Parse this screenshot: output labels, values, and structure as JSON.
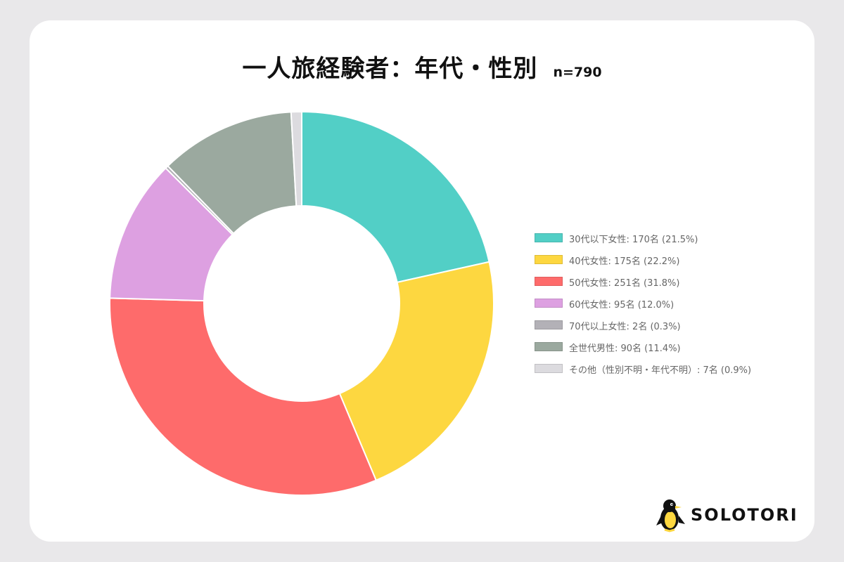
{
  "title": "一人旅経験者：年代・性別",
  "sample_size": "n=790",
  "brand": {
    "name": "SOLOTORI",
    "logo_icon": "penguin-mascot-icon"
  },
  "legend": [
    {
      "label": "30代以下女性: 170名 (21.5%)",
      "color": "#52cfc6"
    },
    {
      "label": "40代女性: 175名 (22.2%)",
      "color": "#fdd740"
    },
    {
      "label": "50代女性: 251名 (31.8%)",
      "color": "#fe6b6b"
    },
    {
      "label": "60代女性: 95名 (12.0%)",
      "color": "#dda0e1"
    },
    {
      "label": "70代以上女性: 2名 (0.3%)",
      "color": "#b3b1b7"
    },
    {
      "label": "全世代男性: 90名 (11.4%)",
      "color": "#9ba99f"
    },
    {
      "label": "その他（性別不明・年代不明）: 7名 (0.9%)",
      "color": "#dcdbdf"
    }
  ],
  "chart_data": {
    "type": "pie",
    "donut": true,
    "title": "一人旅経験者：年代・性別",
    "total": 790,
    "legend_position": "right",
    "categories": [
      "30代以下女性",
      "40代女性",
      "50代女性",
      "60代女性",
      "70代以上女性",
      "全世代男性",
      "その他（性別不明・年代不明）"
    ],
    "values": [
      170,
      175,
      251,
      95,
      2,
      90,
      7
    ],
    "percentages": [
      21.5,
      22.2,
      31.8,
      12.0,
      0.3,
      11.4,
      0.9
    ],
    "colors": [
      "#52cfc6",
      "#fdd740",
      "#fe6b6b",
      "#dda0e1",
      "#b3b1b7",
      "#9ba99f",
      "#dcdbdf"
    ]
  }
}
